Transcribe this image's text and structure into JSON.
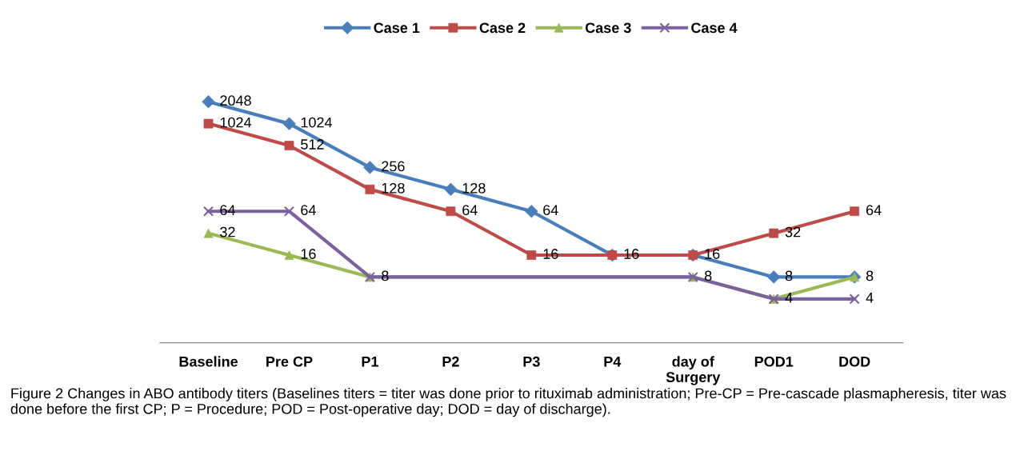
{
  "chart_data": {
    "type": "line",
    "log": true,
    "grid": false,
    "legend": "top",
    "tick_labels": "x",
    "line_style": "solid",
    "categories": [
      "Baseline",
      "Pre CP",
      "P1",
      "P2",
      "P3",
      "P4",
      "day of\nSurgery",
      "POD1",
      "DOD"
    ],
    "series": [
      {
        "name": "Case 1",
        "color": "#4a7ebb",
        "marker": "diamond",
        "values": [
          2048,
          1024,
          256,
          128,
          64,
          16,
          16,
          8,
          8
        ],
        "value_labels": [
          "2048",
          "1024",
          "256",
          "128",
          "64",
          "16",
          "16",
          "8",
          "8"
        ]
      },
      {
        "name": "Case 2",
        "color": "#be4b48",
        "marker": "square",
        "values": [
          1024,
          512,
          128,
          64,
          16,
          16,
          16,
          32,
          64
        ],
        "value_labels": [
          "1024",
          "512",
          "128",
          "64",
          "16",
          null,
          null,
          "32",
          "64"
        ]
      },
      {
        "name": "Case 3",
        "color": "#98b954",
        "marker": "triangle",
        "values": [
          32,
          16,
          8,
          null,
          null,
          null,
          8,
          4,
          8
        ],
        "value_labels": [
          "32",
          "16",
          "8",
          null,
          null,
          null,
          "8",
          "4",
          null
        ]
      },
      {
        "name": "Case 4",
        "color": "#7d60a0",
        "marker": "cross",
        "values": [
          64,
          64,
          8,
          null,
          null,
          null,
          8,
          4,
          4
        ],
        "value_labels": [
          "64",
          "64",
          null,
          null,
          null,
          null,
          null,
          null,
          "4"
        ]
      }
    ],
    "annotations": [
      "Figure 2 Changes in ABO antibody titers (Baselines titers = titer was done prior to rituximab administration; Pre-CP = Pre-cascade plasmapheresis, titer was done before the first CP; P = Procedure; POD = Post-operative day; DOD = day of discharge)."
    ]
  }
}
